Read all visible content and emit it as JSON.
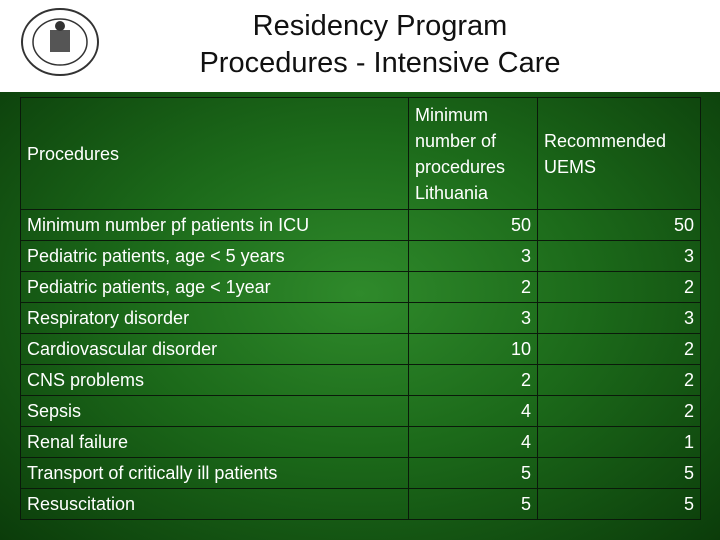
{
  "title": [
    "Residency Program",
    "Procedures - Intensive Care"
  ],
  "table": {
    "header": [
      "Procedures",
      "Minimum number of procedures Lithuania",
      "Recommended UEMS"
    ],
    "rows": [
      [
        "Minimum number pf patients in ICU",
        50,
        50
      ],
      [
        "Pediatric patients, age < 5 years",
        3,
        3
      ],
      [
        "Pediatric patients, age < 1year",
        2,
        2
      ],
      [
        "Respiratory disorder",
        3,
        3
      ],
      [
        "Cardiovascular disorder",
        10,
        2
      ],
      [
        "CNS problems",
        2,
        2
      ],
      [
        "Sepsis",
        4,
        2
      ],
      [
        "Renal failure",
        4,
        1
      ],
      [
        "Transport of critically ill patients",
        5,
        5
      ],
      [
        "Resuscitation",
        5,
        5
      ]
    ]
  }
}
